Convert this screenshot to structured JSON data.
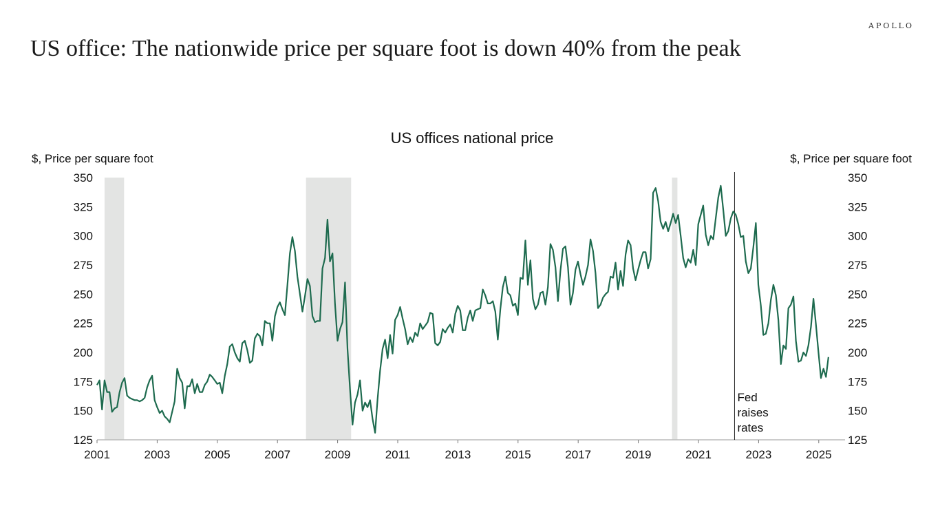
{
  "brand": "APOLLO",
  "headline": "US office: The nationwide price per square foot is down 40% from the peak",
  "chart_data": {
    "type": "line",
    "title": "US offices national price",
    "ylabel_left": "$, Price per square foot",
    "ylabel_right": "$, Price per square foot",
    "xlabel": "",
    "xlim": [
      2001,
      2025.6
    ],
    "ylim": [
      125,
      350
    ],
    "yticks": [
      125,
      150,
      175,
      200,
      225,
      250,
      275,
      300,
      325,
      350
    ],
    "xticks": [
      "2001",
      "2003",
      "2005",
      "2007",
      "2009",
      "2011",
      "2013",
      "2015",
      "2017",
      "2019",
      "2021",
      "2023",
      "2025"
    ],
    "line_color": "#1e6b4f",
    "recession_color": "#e3e4e3",
    "recessions": [
      [
        2001.25,
        2001.9
      ],
      [
        2007.95,
        2009.45
      ],
      [
        2020.12,
        2020.3
      ]
    ],
    "annotation": {
      "x": 2022.2,
      "lines": [
        "Fed",
        "raises",
        "rates"
      ]
    },
    "series": [
      {
        "name": "US offices national price",
        "x_start": 2001.0,
        "x_step": 0.0833,
        "values": [
          172,
          176,
          151,
          176,
          166,
          166,
          149,
          152,
          153,
          166,
          174,
          178,
          163,
          161,
          160,
          159,
          159,
          158,
          159,
          161,
          170,
          176,
          180,
          159,
          153,
          148,
          150,
          145,
          143,
          140,
          149,
          158,
          186,
          178,
          174,
          152,
          171,
          171,
          177,
          165,
          173,
          166,
          166,
          172,
          175,
          181,
          179,
          176,
          173,
          174,
          165,
          180,
          190,
          205,
          207,
          200,
          195,
          192,
          208,
          210,
          202,
          191,
          193,
          212,
          216,
          214,
          206,
          227,
          225,
          225,
          210,
          231,
          239,
          243,
          237,
          232,
          258,
          285,
          299,
          287,
          265,
          250,
          235,
          248,
          263,
          257,
          231,
          226,
          227,
          227,
          272,
          281,
          314,
          278,
          285,
          242,
          210,
          220,
          226,
          260,
          203,
          168,
          138,
          157,
          164,
          176,
          150,
          157,
          153,
          159,
          143,
          131,
          160,
          184,
          203,
          211,
          195,
          215,
          199,
          228,
          232,
          239,
          229,
          220,
          207,
          213,
          209,
          217,
          214,
          225,
          220,
          223,
          226,
          234,
          233,
          208,
          206,
          209,
          220,
          217,
          221,
          224,
          217,
          233,
          240,
          236,
          219,
          219,
          230,
          236,
          227,
          236,
          237,
          238,
          254,
          249,
          242,
          242,
          244,
          235,
          211,
          237,
          256,
          265,
          251,
          249,
          240,
          242,
          232,
          264,
          263,
          296,
          258,
          279,
          246,
          237,
          241,
          251,
          252,
          241,
          256,
          293,
          288,
          273,
          244,
          270,
          289,
          291,
          273,
          241,
          251,
          271,
          278,
          267,
          258,
          265,
          275,
          297,
          287,
          268,
          238,
          241,
          247,
          250,
          252,
          265,
          264,
          277,
          254,
          270,
          257,
          284,
          296,
          292,
          272,
          262,
          271,
          279,
          286,
          286,
          272,
          280,
          337,
          341,
          330,
          312,
          306,
          312,
          304,
          311,
          319,
          311,
          318,
          300,
          281,
          273,
          280,
          277,
          288,
          275,
          310,
          318,
          326,
          301,
          292,
          300,
          297,
          315,
          333,
          343,
          322,
          300,
          304,
          315,
          321,
          318,
          310,
          299,
          300,
          278,
          268,
          272,
          290,
          311,
          258,
          240,
          215,
          216,
          225,
          245,
          258,
          249,
          228,
          190,
          206,
          203,
          238,
          241,
          248,
          210,
          192,
          193,
          200,
          197,
          206,
          222,
          246,
          224,
          200,
          178,
          186,
          179,
          196
        ]
      }
    ]
  }
}
